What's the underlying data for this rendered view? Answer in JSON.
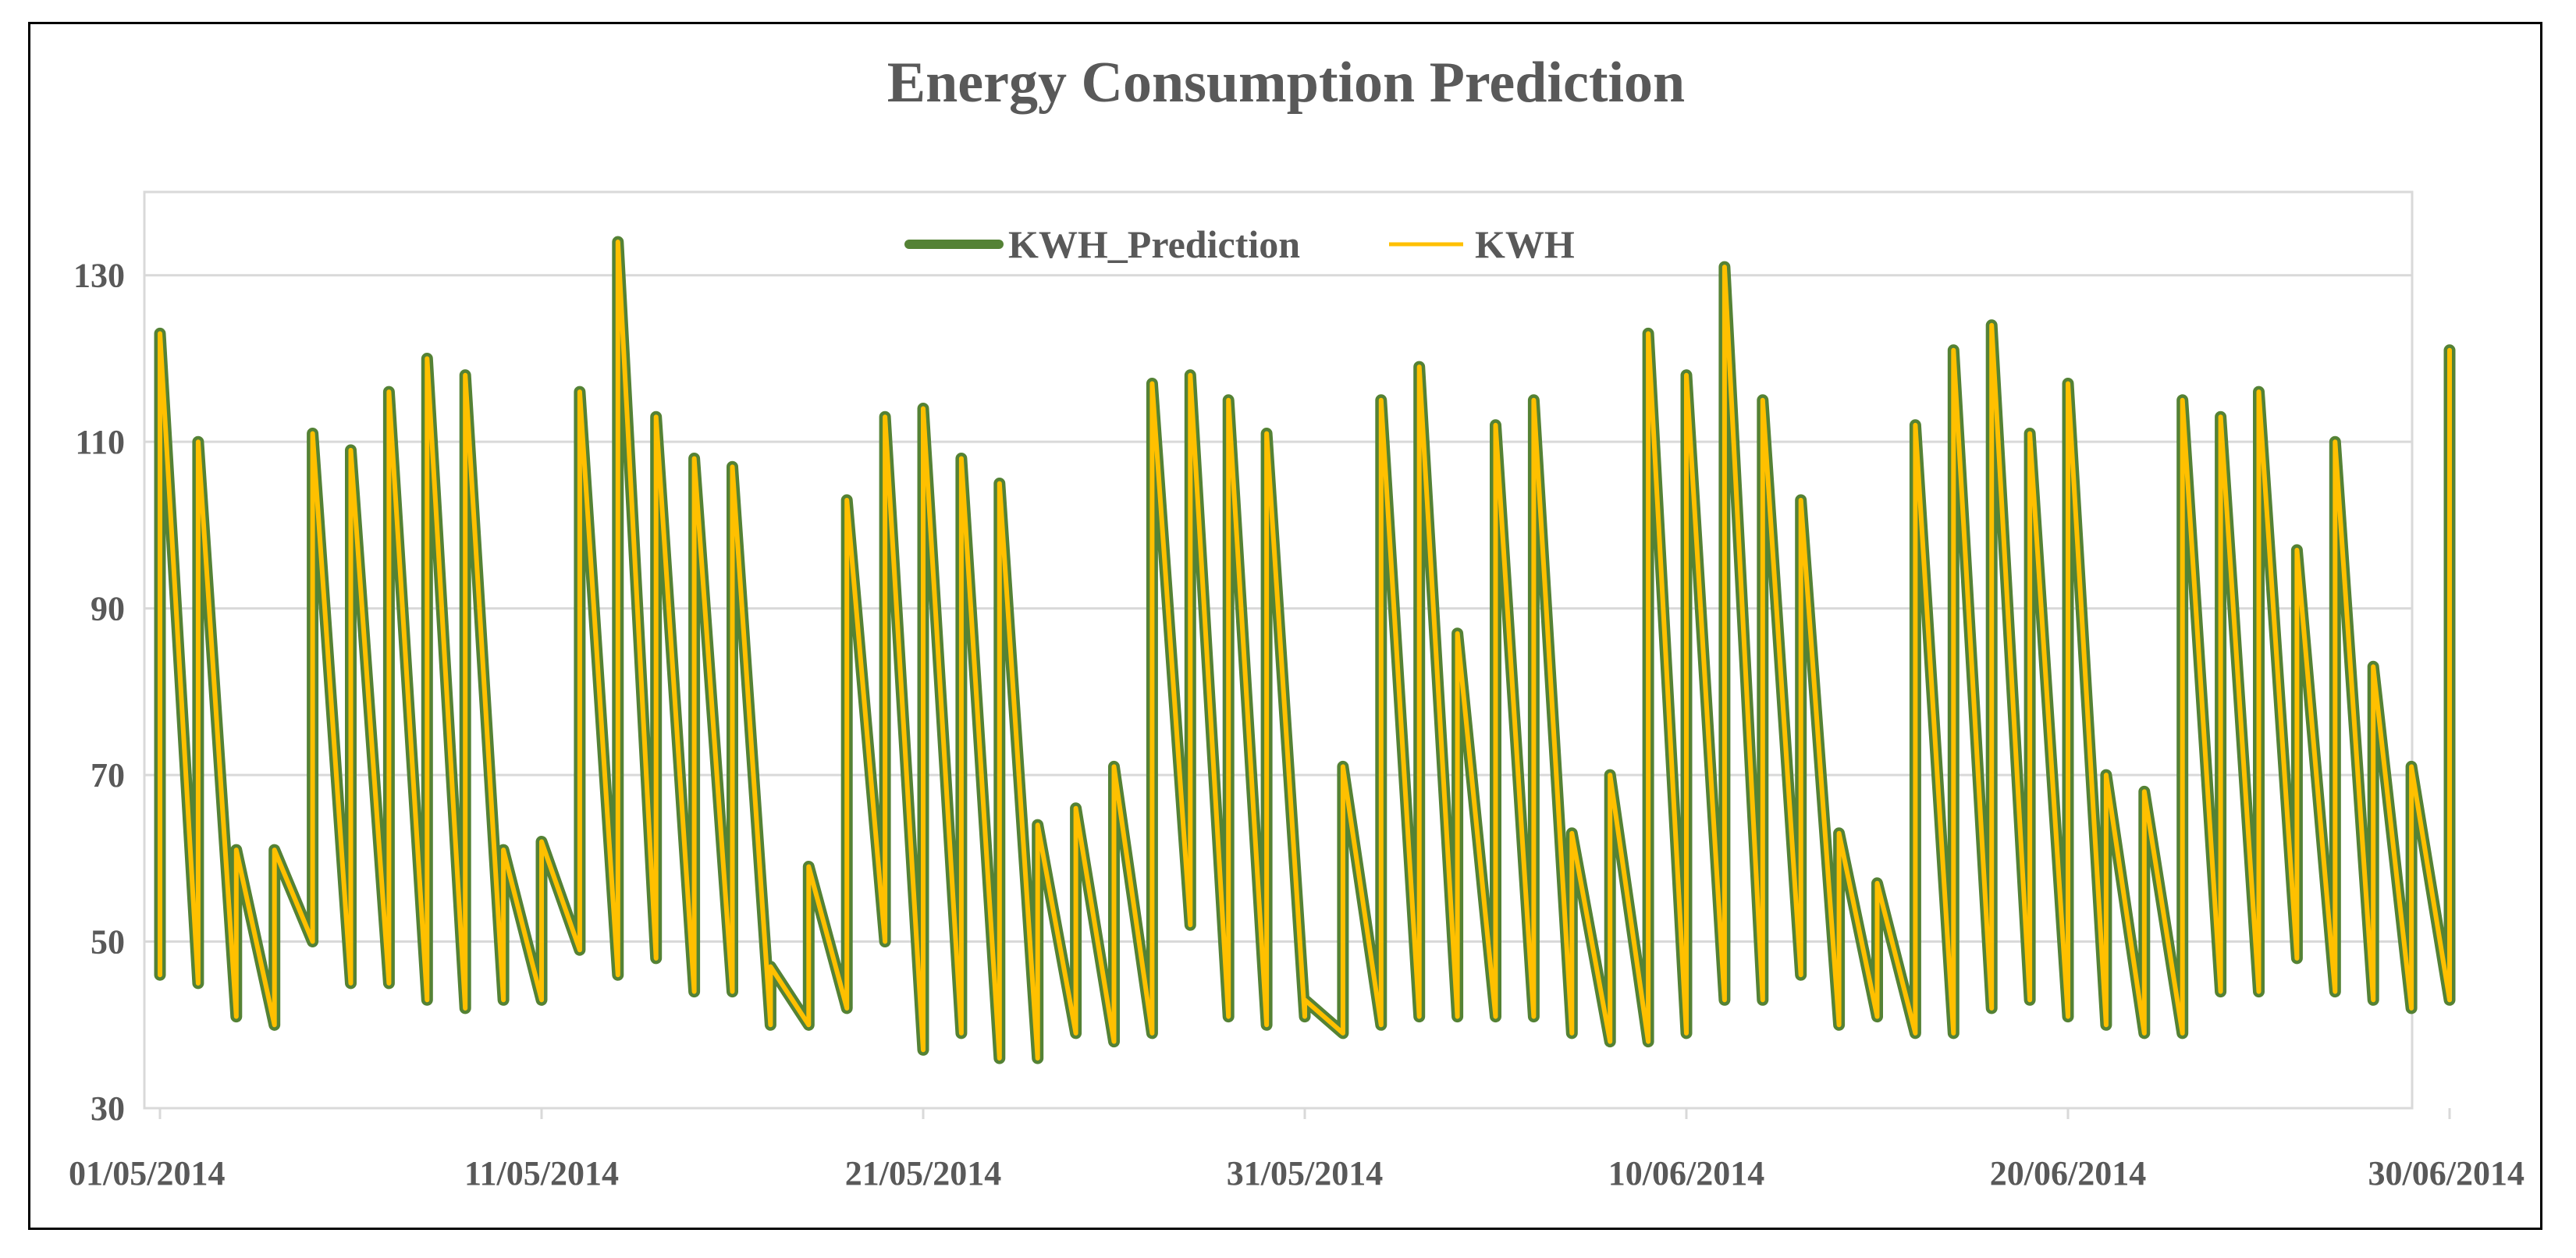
{
  "chart_data": {
    "type": "line",
    "title": "Energy Consumption Prediction",
    "xlabel": "",
    "ylabel": "",
    "ylim": [
      30,
      140
    ],
    "yticks": [
      30,
      50,
      70,
      90,
      110,
      130
    ],
    "x_start": "01/05/2014",
    "x_end": "30/06/2014",
    "xtick_labels": [
      "01/05/2014",
      "11/05/2014",
      "21/05/2014",
      "31/05/2014",
      "10/06/2014",
      "20/06/2014",
      "30/06/2014"
    ],
    "grid": "horizontal",
    "legend": "top-center",
    "x": [
      "01/05/2014",
      "01/05/2014",
      "02/05/2014",
      "02/05/2014",
      "03/05/2014",
      "03/05/2014",
      "04/05/2014",
      "04/05/2014",
      "05/05/2014",
      "05/05/2014",
      "06/05/2014",
      "06/05/2014",
      "07/05/2014",
      "07/05/2014",
      "08/05/2014",
      "08/05/2014",
      "09/05/2014",
      "09/05/2014",
      "10/05/2014",
      "10/05/2014",
      "11/05/2014",
      "11/05/2014",
      "12/05/2014",
      "12/05/2014",
      "13/05/2014",
      "13/05/2014",
      "14/05/2014",
      "14/05/2014",
      "15/05/2014",
      "15/05/2014",
      "16/05/2014",
      "16/05/2014",
      "17/05/2014",
      "17/05/2014",
      "18/05/2014",
      "18/05/2014",
      "19/05/2014",
      "19/05/2014",
      "20/05/2014",
      "20/05/2014",
      "21/05/2014",
      "21/05/2014",
      "22/05/2014",
      "22/05/2014",
      "23/05/2014",
      "23/05/2014",
      "24/05/2014",
      "24/05/2014",
      "25/05/2014",
      "25/05/2014",
      "26/05/2014",
      "26/05/2014",
      "27/05/2014",
      "27/05/2014",
      "28/05/2014",
      "28/05/2014",
      "29/05/2014",
      "29/05/2014",
      "30/05/2014",
      "30/05/2014",
      "31/05/2014",
      "31/05/2014",
      "01/06/2014",
      "01/06/2014",
      "02/06/2014",
      "02/06/2014",
      "03/06/2014",
      "03/06/2014",
      "04/06/2014",
      "04/06/2014",
      "05/06/2014",
      "05/06/2014",
      "06/06/2014",
      "06/06/2014",
      "07/06/2014",
      "07/06/2014",
      "08/06/2014",
      "08/06/2014",
      "09/06/2014",
      "09/06/2014",
      "10/06/2014",
      "10/06/2014",
      "11/06/2014",
      "11/06/2014",
      "12/06/2014",
      "12/06/2014",
      "13/06/2014",
      "13/06/2014",
      "14/06/2014",
      "14/06/2014",
      "15/06/2014",
      "15/06/2014",
      "16/06/2014",
      "16/06/2014",
      "17/06/2014",
      "17/06/2014",
      "18/06/2014",
      "18/06/2014",
      "19/06/2014",
      "19/06/2014",
      "20/06/2014",
      "20/06/2014",
      "21/06/2014",
      "21/06/2014",
      "22/06/2014",
      "22/06/2014",
      "23/06/2014",
      "23/06/2014",
      "24/06/2014",
      "24/06/2014",
      "25/06/2014",
      "25/06/2014",
      "26/06/2014",
      "26/06/2014",
      "27/06/2014",
      "27/06/2014",
      "28/06/2014",
      "28/06/2014",
      "29/06/2014",
      "29/06/2014",
      "30/06/2014",
      "30/06/2014"
    ],
    "series": [
      {
        "name": "KWH_Prediction",
        "color": "#548235",
        "values": [
          46,
          123,
          45,
          110,
          41,
          61,
          40,
          61,
          50,
          111,
          45,
          109,
          45,
          116,
          43,
          120,
          42,
          118,
          43,
          61,
          43,
          62,
          49,
          116,
          46,
          134,
          48,
          113,
          44,
          108,
          44,
          107,
          40,
          47,
          40,
          59,
          42,
          103,
          50,
          113,
          37,
          114,
          39,
          108,
          36,
          105,
          36,
          64,
          39,
          66,
          38,
          71,
          39,
          117,
          52,
          118,
          41,
          115,
          40,
          111,
          41,
          43,
          39,
          71,
          40,
          115,
          41,
          119,
          41,
          87,
          41,
          112,
          41,
          115,
          39,
          63,
          38,
          70,
          38,
          123,
          39,
          118,
          43,
          131,
          43,
          115,
          46,
          103,
          40,
          63,
          41,
          57,
          39,
          112,
          39,
          121,
          42,
          124,
          43,
          111,
          41,
          117,
          40,
          70,
          39,
          68,
          39,
          115,
          44,
          113,
          44,
          116,
          48,
          97,
          44,
          110,
          43,
          83,
          42,
          71,
          43,
          121
        ]
      },
      {
        "name": "KWH",
        "color": "#FFC000",
        "values": [
          46,
          123,
          45,
          110,
          41,
          61,
          40,
          61,
          50,
          111,
          45,
          109,
          45,
          116,
          43,
          120,
          42,
          118,
          43,
          61,
          43,
          62,
          49,
          116,
          46,
          134,
          48,
          113,
          44,
          108,
          44,
          107,
          40,
          47,
          40,
          59,
          42,
          103,
          50,
          113,
          37,
          114,
          39,
          108,
          36,
          105,
          36,
          64,
          39,
          66,
          38,
          71,
          39,
          117,
          52,
          118,
          41,
          115,
          40,
          111,
          41,
          43,
          39,
          71,
          40,
          115,
          41,
          119,
          41,
          87,
          41,
          112,
          41,
          115,
          39,
          63,
          38,
          70,
          38,
          123,
          39,
          118,
          43,
          131,
          43,
          115,
          46,
          103,
          40,
          63,
          41,
          57,
          39,
          112,
          39,
          121,
          42,
          124,
          43,
          111,
          41,
          117,
          40,
          70,
          39,
          68,
          39,
          115,
          44,
          113,
          44,
          116,
          48,
          97,
          44,
          110,
          43,
          83,
          42,
          71,
          43,
          121
        ]
      }
    ]
  }
}
